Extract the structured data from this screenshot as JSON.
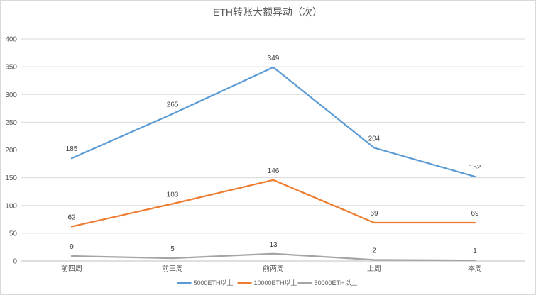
{
  "chart_data": {
    "type": "line",
    "title": "ETH转账大额异动（次）",
    "categories": [
      "前四周",
      "前三周",
      "前两周",
      "上周",
      "本周"
    ],
    "ylim": [
      0,
      400
    ],
    "yticks": [
      0,
      50,
      100,
      150,
      200,
      250,
      300,
      350,
      400
    ],
    "grid": true,
    "legend_position": "bottom",
    "series": [
      {
        "name": "5000ETH以上",
        "color": "#5b9bd5",
        "values": [
          185,
          265,
          349,
          204,
          152
        ]
      },
      {
        "name": "10000ETH以上",
        "color": "#ed7d31",
        "values": [
          62,
          103,
          146,
          69,
          69
        ]
      },
      {
        "name": "50000ETH以上",
        "color": "#a5a5a5",
        "values": [
          9,
          5,
          13,
          2,
          1
        ]
      }
    ]
  }
}
